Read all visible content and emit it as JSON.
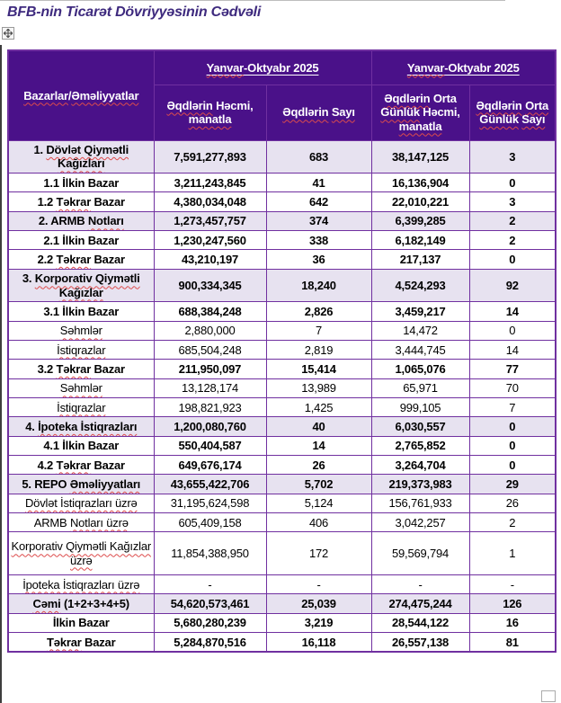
{
  "title": "BFB-nin Ticarət Dövriyyəsinin Cədvəli",
  "colors": {
    "header_bg": "#4A1189",
    "section_row_bg": "#E7E2F0",
    "table_border": "#7030A0",
    "title_text": "#3E2A7E",
    "spellcheck_squiggle": "#DD4B4B"
  },
  "icons": {
    "move_handle": "four-way-arrow",
    "resize_handle": "empty-square"
  },
  "table": {
    "corner": {
      "parts": [
        {
          "t": "Bazarlar",
          "w": 1
        },
        {
          "t": "/",
          "w": 0
        },
        {
          "t": "Əməliyyatlar",
          "w": 1
        }
      ]
    },
    "periods": [
      {
        "underline": true,
        "parts": [
          {
            "t": "Yanvar",
            "w": 1
          },
          {
            "t": "-Oktyabr 2025",
            "w": 0
          }
        ]
      },
      {
        "underline": true,
        "parts": [
          {
            "t": "Yanvar",
            "w": 1
          },
          {
            "t": "-Oktyabr 2025",
            "w": 0
          }
        ]
      }
    ],
    "columns": [
      {
        "parts": [
          {
            "t": "Əqdlərin",
            "w": 1
          },
          {
            "t": " Həcmi, ",
            "w": 0
          },
          {
            "t": "manatla",
            "w": 1
          }
        ]
      },
      {
        "parts": [
          {
            "t": "Əqdlərin",
            "w": 1
          },
          {
            "t": " ",
            "w": 0
          },
          {
            "t": "Sayı",
            "w": 1
          }
        ]
      },
      {
        "parts": [
          {
            "t": "Əqdlərin",
            "w": 1
          },
          {
            "t": " Orta ",
            "w": 0
          },
          {
            "t": "Günlük",
            "w": 1
          },
          {
            "t": " Həcmi, ",
            "w": 0
          },
          {
            "t": "manatla",
            "w": 1
          }
        ]
      },
      {
        "parts": [
          {
            "t": "Əqdlərin",
            "w": 1
          },
          {
            "t": " ",
            "w": 0
          },
          {
            "t": "Orta Günlük",
            "w": 1
          },
          {
            "t": " ",
            "w": 0
          },
          {
            "t": "Sayı",
            "w": 1
          }
        ]
      }
    ],
    "rows": [
      {
        "style": "section",
        "label": [
          {
            "t": "1. ",
            "w": 0
          },
          {
            "t": "Dövlət Qiymətli Kağızları",
            "w": 1
          }
        ],
        "values": [
          "7,591,277,893",
          "683",
          "38,147,125",
          "3"
        ]
      },
      {
        "style": "sub",
        "label": [
          {
            "t": "1.1 İlkin Bazar",
            "w": 0
          }
        ],
        "values": [
          "3,211,243,845",
          "41",
          "16,136,904",
          "0"
        ]
      },
      {
        "style": "sub",
        "label": [
          {
            "t": "1.2 ",
            "w": 0
          },
          {
            "t": "Təkrar",
            "w": 1
          },
          {
            "t": " Bazar",
            "w": 0
          }
        ],
        "values": [
          "4,380,034,048",
          "642",
          "22,010,221",
          "3"
        ]
      },
      {
        "style": "section",
        "label": [
          {
            "t": "2. ARMB ",
            "w": 0
          },
          {
            "t": "Notları",
            "w": 1
          }
        ],
        "values": [
          "1,273,457,757",
          "374",
          "6,399,285",
          "2"
        ]
      },
      {
        "style": "sub",
        "label": [
          {
            "t": "2.1 İlkin Bazar",
            "w": 0
          }
        ],
        "values": [
          "1,230,247,560",
          "338",
          "6,182,149",
          "2"
        ]
      },
      {
        "style": "sub",
        "label": [
          {
            "t": "2.2 ",
            "w": 0
          },
          {
            "t": "Təkrar",
            "w": 1
          },
          {
            "t": " Bazar",
            "w": 0
          }
        ],
        "values": [
          "43,210,197",
          "36",
          "217,137",
          "0"
        ]
      },
      {
        "style": "section",
        "label": [
          {
            "t": "3. ",
            "w": 0
          },
          {
            "t": "Korporativ Qiymətli Kağızlar",
            "w": 1
          }
        ],
        "values": [
          "900,334,345",
          "18,240",
          "4,524,293",
          "92"
        ]
      },
      {
        "style": "sub",
        "label": [
          {
            "t": "3.1 İlkin Bazar",
            "w": 0
          }
        ],
        "values": [
          "688,384,248",
          "2,826",
          "3,459,217",
          "14"
        ]
      },
      {
        "style": "plain",
        "label": [
          {
            "t": "Səhmlər",
            "w": 1
          }
        ],
        "values": [
          "2,880,000",
          "7",
          "14,472",
          "0"
        ]
      },
      {
        "style": "plain",
        "label": [
          {
            "t": "İstiqrazlar",
            "w": 1
          }
        ],
        "values": [
          "685,504,248",
          "2,819",
          "3,444,745",
          "14"
        ]
      },
      {
        "style": "sub",
        "label": [
          {
            "t": "3.2 ",
            "w": 0
          },
          {
            "t": "Təkrar",
            "w": 1
          },
          {
            "t": " Bazar",
            "w": 0
          }
        ],
        "values": [
          "211,950,097",
          "15,414",
          "1,065,076",
          "77"
        ]
      },
      {
        "style": "plain",
        "label": [
          {
            "t": "Səhmlər",
            "w": 1
          }
        ],
        "values": [
          "13,128,174",
          "13,989",
          "65,971",
          "70"
        ]
      },
      {
        "style": "plain",
        "label": [
          {
            "t": "İstiqrazlar",
            "w": 1
          }
        ],
        "values": [
          "198,821,923",
          "1,425",
          "999,105",
          "7"
        ]
      },
      {
        "style": "section",
        "label": [
          {
            "t": "4. ",
            "w": 0
          },
          {
            "t": "İpoteka İstiqrazları",
            "w": 1
          }
        ],
        "values": [
          "1,200,080,760",
          "40",
          "6,030,557",
          "0"
        ]
      },
      {
        "style": "sub",
        "label": [
          {
            "t": "4.1 İlkin Bazar",
            "w": 0
          }
        ],
        "values": [
          "550,404,587",
          "14",
          "2,765,852",
          "0"
        ]
      },
      {
        "style": "sub",
        "label": [
          {
            "t": "4.2 ",
            "w": 0
          },
          {
            "t": "Təkrar",
            "w": 1
          },
          {
            "t": " Bazar",
            "w": 0
          }
        ],
        "values": [
          "649,676,174",
          "26",
          "3,264,704",
          "0"
        ]
      },
      {
        "style": "section",
        "label": [
          {
            "t": "5. REPO ",
            "w": 0
          },
          {
            "t": "Əməliyyatları",
            "w": 1
          }
        ],
        "values": [
          "43,655,422,706",
          "5,702",
          "219,373,983",
          "29"
        ]
      },
      {
        "style": "plain",
        "label": [
          {
            "t": "Dövlət İstiqrazları üzrə",
            "w": 1
          }
        ],
        "values": [
          "31,195,624,598",
          "5,124",
          "156,761,933",
          "26"
        ]
      },
      {
        "style": "plain",
        "label": [
          {
            "t": "ARMB ",
            "w": 0
          },
          {
            "t": "Notları üzrə",
            "w": 1
          }
        ],
        "values": [
          "605,409,158",
          "406",
          "3,042,257",
          "2"
        ]
      },
      {
        "style": "plain",
        "tall": true,
        "label": [
          {
            "t": "Korporativ Qiymətli Kağızlar üzrə",
            "w": 1
          }
        ],
        "values": [
          "11,854,388,950",
          "172",
          "59,569,794",
          "1"
        ]
      },
      {
        "style": "plain",
        "label": [
          {
            "t": "İpoteka İstiqrazları üzrə",
            "w": 1
          }
        ],
        "values": [
          "-",
          "-",
          "-",
          "-"
        ]
      },
      {
        "style": "total",
        "label": [
          {
            "t": "Cəmi",
            "w": 1
          },
          {
            "t": " (1+2+3+4+5)",
            "w": 0
          }
        ],
        "values": [
          "54,620,573,461",
          "25,039",
          "274,475,244",
          "126"
        ]
      },
      {
        "style": "sub",
        "label": [
          {
            "t": "İlkin Bazar",
            "w": 0
          }
        ],
        "values": [
          "5,680,280,239",
          "3,219",
          "28,544,122",
          "16"
        ]
      },
      {
        "style": "sub",
        "label": [
          {
            "t": "Təkrar",
            "w": 1
          },
          {
            "t": " Bazar",
            "w": 0
          }
        ],
        "values": [
          "5,284,870,516",
          "16,118",
          "26,557,138",
          "81"
        ]
      }
    ]
  }
}
